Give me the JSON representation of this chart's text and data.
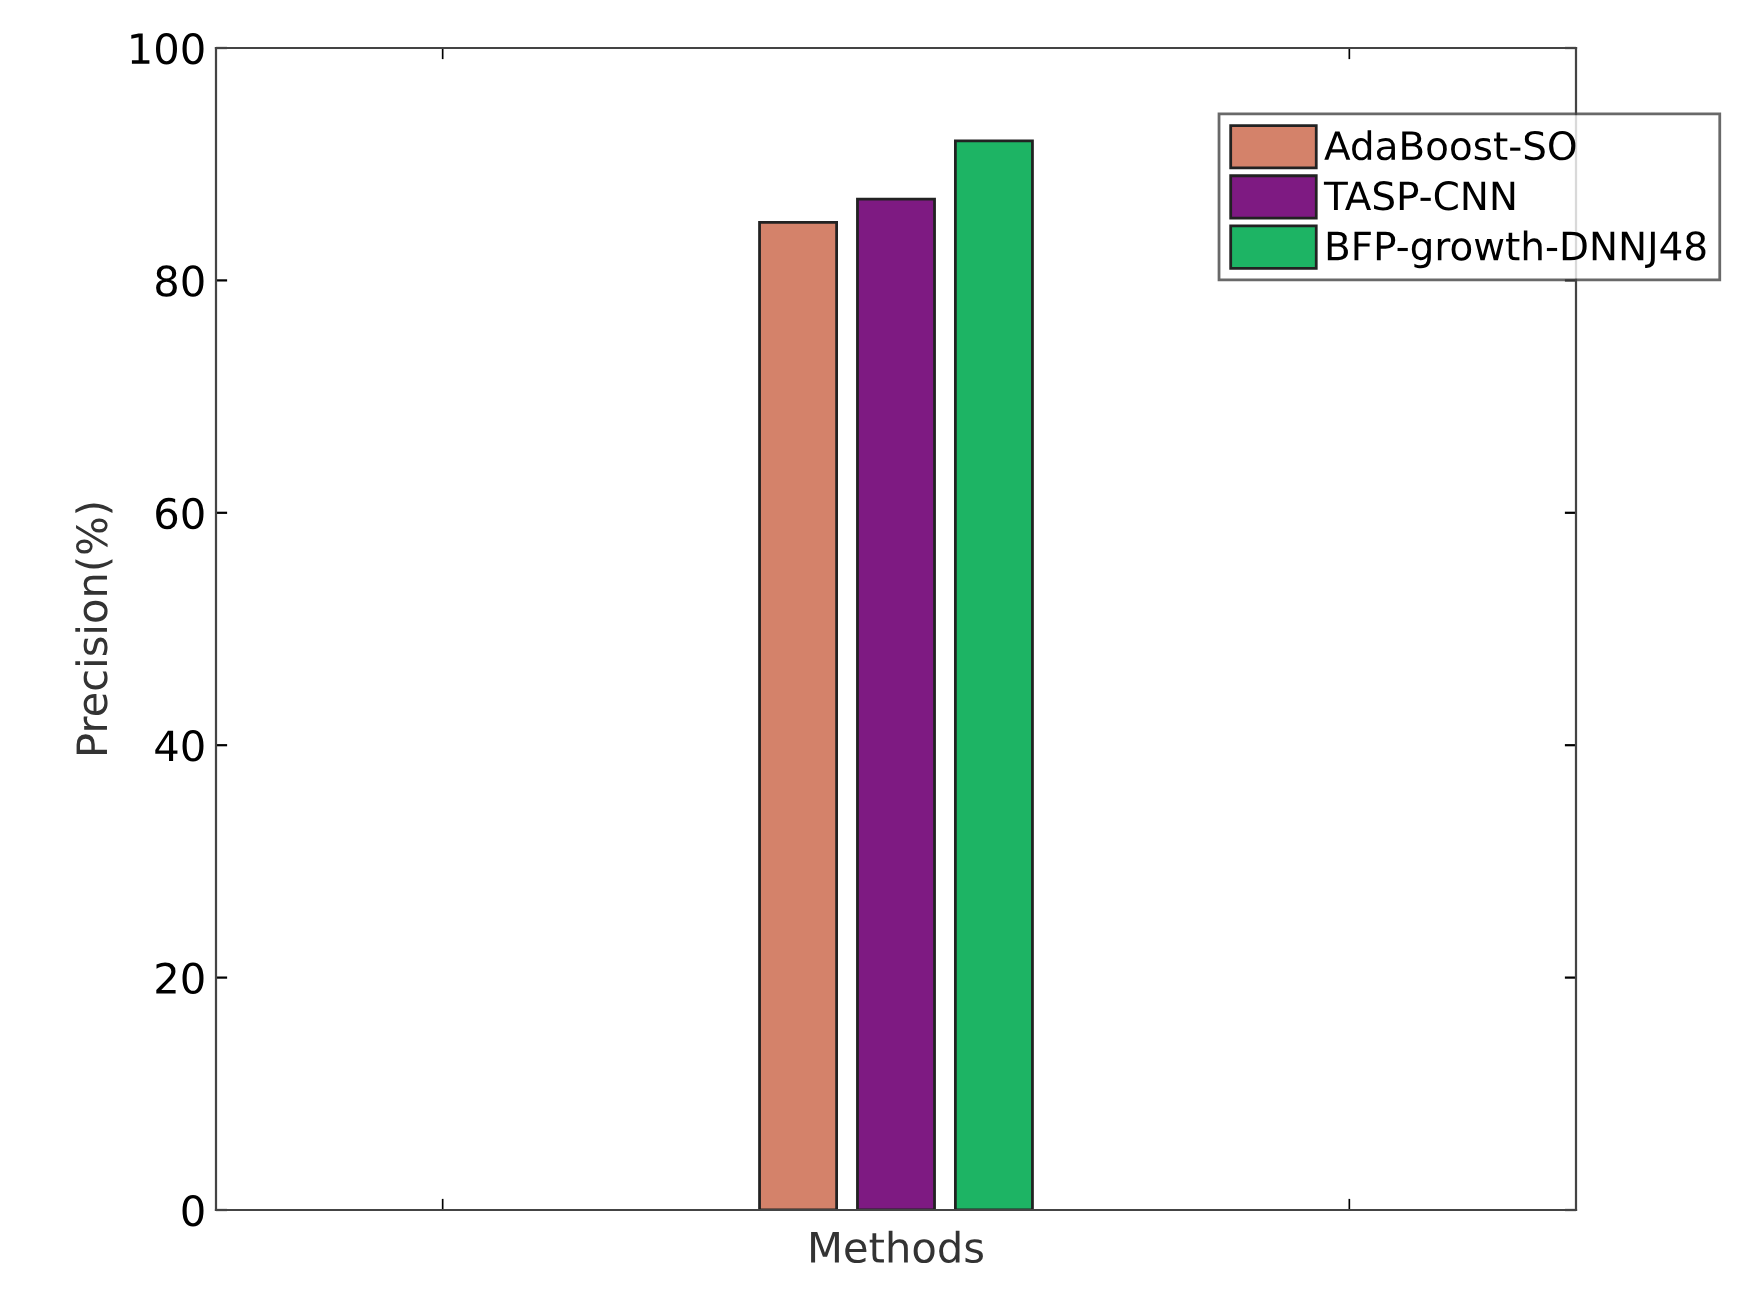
{
  "chart_data": {
    "type": "bar",
    "categories": [
      null
    ],
    "xlabel": "Methods",
    "ylabel": "Precision(%)",
    "series": [
      {
        "name": "AdaBoost-SO",
        "color": "#d4826a",
        "values": [
          85
        ]
      },
      {
        "name": "TASP-CNN",
        "color": "#7e1a82",
        "values": [
          87
        ]
      },
      {
        "name": "BFP-growth-DNNJ48",
        "color": "#1db464",
        "values": [
          92
        ]
      }
    ],
    "ylim": [
      0,
      100
    ],
    "yticks": [
      0,
      20,
      40,
      60,
      80,
      100
    ],
    "legend": "top right",
    "grid": false
  }
}
